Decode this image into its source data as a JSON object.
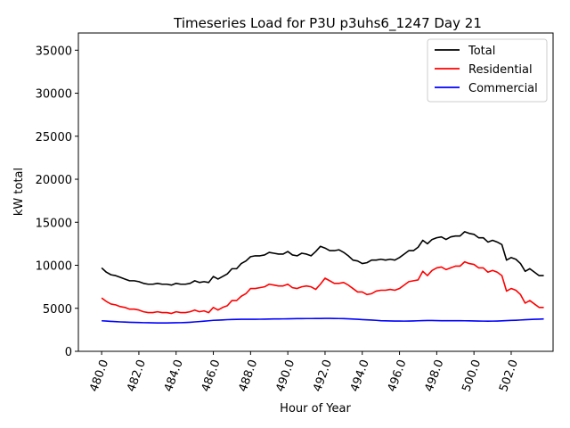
{
  "chart_data": {
    "type": "line",
    "title": "Timeseries Load for P3U p3uhs6_1247  Day 21",
    "xlabel": "Hour of Year",
    "ylabel": "kW total",
    "xlim": [
      478.75,
      504.25
    ],
    "ylim": [
      0,
      37000
    ],
    "xticks": [
      480,
      482,
      484,
      486,
      488,
      490,
      492,
      494,
      496,
      498,
      500,
      502
    ],
    "xtick_labels": [
      "480.0",
      "482.0",
      "484.0",
      "486.0",
      "488.0",
      "490.0",
      "492.0",
      "494.0",
      "496.0",
      "498.0",
      "500.0",
      "502.0"
    ],
    "yticks": [
      0,
      5000,
      10000,
      15000,
      20000,
      25000,
      30000,
      35000
    ],
    "ytick_labels": [
      "0",
      "5000",
      "10000",
      "15000",
      "20000",
      "25000",
      "30000",
      "35000"
    ],
    "legend_position": "top-right",
    "x": [
      480.0,
      480.25,
      480.5,
      480.75,
      481.0,
      481.25,
      481.5,
      481.75,
      482.0,
      482.25,
      482.5,
      482.75,
      483.0,
      483.25,
      483.5,
      483.75,
      484.0,
      484.25,
      484.5,
      484.75,
      485.0,
      485.25,
      485.5,
      485.75,
      486.0,
      486.25,
      486.5,
      486.75,
      487.0,
      487.25,
      487.5,
      487.75,
      488.0,
      488.25,
      488.5,
      488.75,
      489.0,
      489.25,
      489.5,
      489.75,
      490.0,
      490.25,
      490.5,
      490.75,
      491.0,
      491.25,
      491.5,
      491.75,
      492.0,
      492.25,
      492.5,
      492.75,
      493.0,
      493.25,
      493.5,
      493.75,
      494.0,
      494.25,
      494.5,
      494.75,
      495.0,
      495.25,
      495.5,
      495.75,
      496.0,
      496.25,
      496.5,
      496.75,
      497.0,
      497.25,
      497.5,
      497.75,
      498.0,
      498.25,
      498.5,
      498.75,
      499.0,
      499.25,
      499.5,
      499.75,
      500.0,
      500.25,
      500.5,
      500.75,
      501.0,
      501.25,
      501.5,
      501.75,
      502.0,
      502.25,
      502.5,
      502.75,
      503.0,
      503.25,
      503.5,
      503.75
    ],
    "series": [
      {
        "name": "Total",
        "color": "#000000",
        "values": [
          9700,
          9200,
          8900,
          8800,
          8600,
          8400,
          8200,
          8200,
          8100,
          7900,
          7800,
          7800,
          7900,
          7800,
          7800,
          7700,
          7900,
          7800,
          7800,
          7900,
          8200,
          8000,
          8100,
          8000,
          8700,
          8400,
          8700,
          9000,
          9600,
          9600,
          10200,
          10500,
          11000,
          11100,
          11100,
          11200,
          11500,
          11400,
          11300,
          11300,
          11600,
          11200,
          11100,
          11400,
          11300,
          11100,
          11600,
          12200,
          12000,
          11700,
          11700,
          11800,
          11500,
          11100,
          10600,
          10500,
          10200,
          10300,
          10600,
          10600,
          10700,
          10600,
          10700,
          10600,
          10900,
          11300,
          11700,
          11700,
          12100,
          12900,
          12500,
          13000,
          13200,
          13300,
          13000,
          13300,
          13400,
          13400,
          13900,
          13700,
          13600,
          13200,
          13200,
          12700,
          12900,
          12700,
          12400,
          10600,
          10900,
          10700,
          10200,
          9300,
          9600,
          9200,
          8800,
          8800
        ]
      },
      {
        "name": "Residential",
        "color": "#ff0000",
        "values": [
          6200,
          5800,
          5500,
          5400,
          5200,
          5100,
          4900,
          4900,
          4800,
          4600,
          4500,
          4500,
          4600,
          4500,
          4500,
          4400,
          4600,
          4500,
          4500,
          4600,
          4800,
          4600,
          4700,
          4500,
          5100,
          4800,
          5100,
          5300,
          5900,
          5900,
          6400,
          6700,
          7300,
          7300,
          7400,
          7500,
          7800,
          7700,
          7600,
          7600,
          7800,
          7400,
          7300,
          7500,
          7600,
          7500,
          7200,
          7800,
          8500,
          8200,
          7900,
          7900,
          8000,
          7700,
          7300,
          6900,
          6900,
          6600,
          6700,
          7000,
          7100,
          7100,
          7200,
          7100,
          7300,
          7700,
          8100,
          8200,
          8300,
          9300,
          8800,
          9400,
          9700,
          9800,
          9500,
          9700,
          9900,
          9900,
          10400,
          10200,
          10100,
          9700,
          9700,
          9200,
          9400,
          9200,
          8800,
          7000,
          7300,
          7100,
          6600,
          5600,
          5900,
          5500,
          5100,
          5100
        ]
      },
      {
        "name": "Commercial",
        "color": "#0000ff",
        "values": [
          3550,
          3520,
          3480,
          3450,
          3420,
          3400,
          3380,
          3360,
          3350,
          3330,
          3320,
          3310,
          3300,
          3300,
          3300,
          3310,
          3320,
          3330,
          3350,
          3380,
          3420,
          3460,
          3500,
          3550,
          3600,
          3620,
          3650,
          3680,
          3700,
          3710,
          3720,
          3720,
          3720,
          3720,
          3730,
          3740,
          3750,
          3760,
          3760,
          3770,
          3780,
          3790,
          3800,
          3800,
          3810,
          3810,
          3820,
          3820,
          3830,
          3830,
          3820,
          3810,
          3800,
          3780,
          3750,
          3720,
          3690,
          3660,
          3630,
          3600,
          3560,
          3540,
          3530,
          3520,
          3520,
          3510,
          3520,
          3530,
          3550,
          3570,
          3580,
          3580,
          3570,
          3560,
          3560,
          3560,
          3560,
          3560,
          3550,
          3540,
          3530,
          3520,
          3510,
          3500,
          3510,
          3520,
          3540,
          3570,
          3590,
          3610,
          3640,
          3670,
          3700,
          3720,
          3740,
          3760
        ]
      }
    ]
  }
}
